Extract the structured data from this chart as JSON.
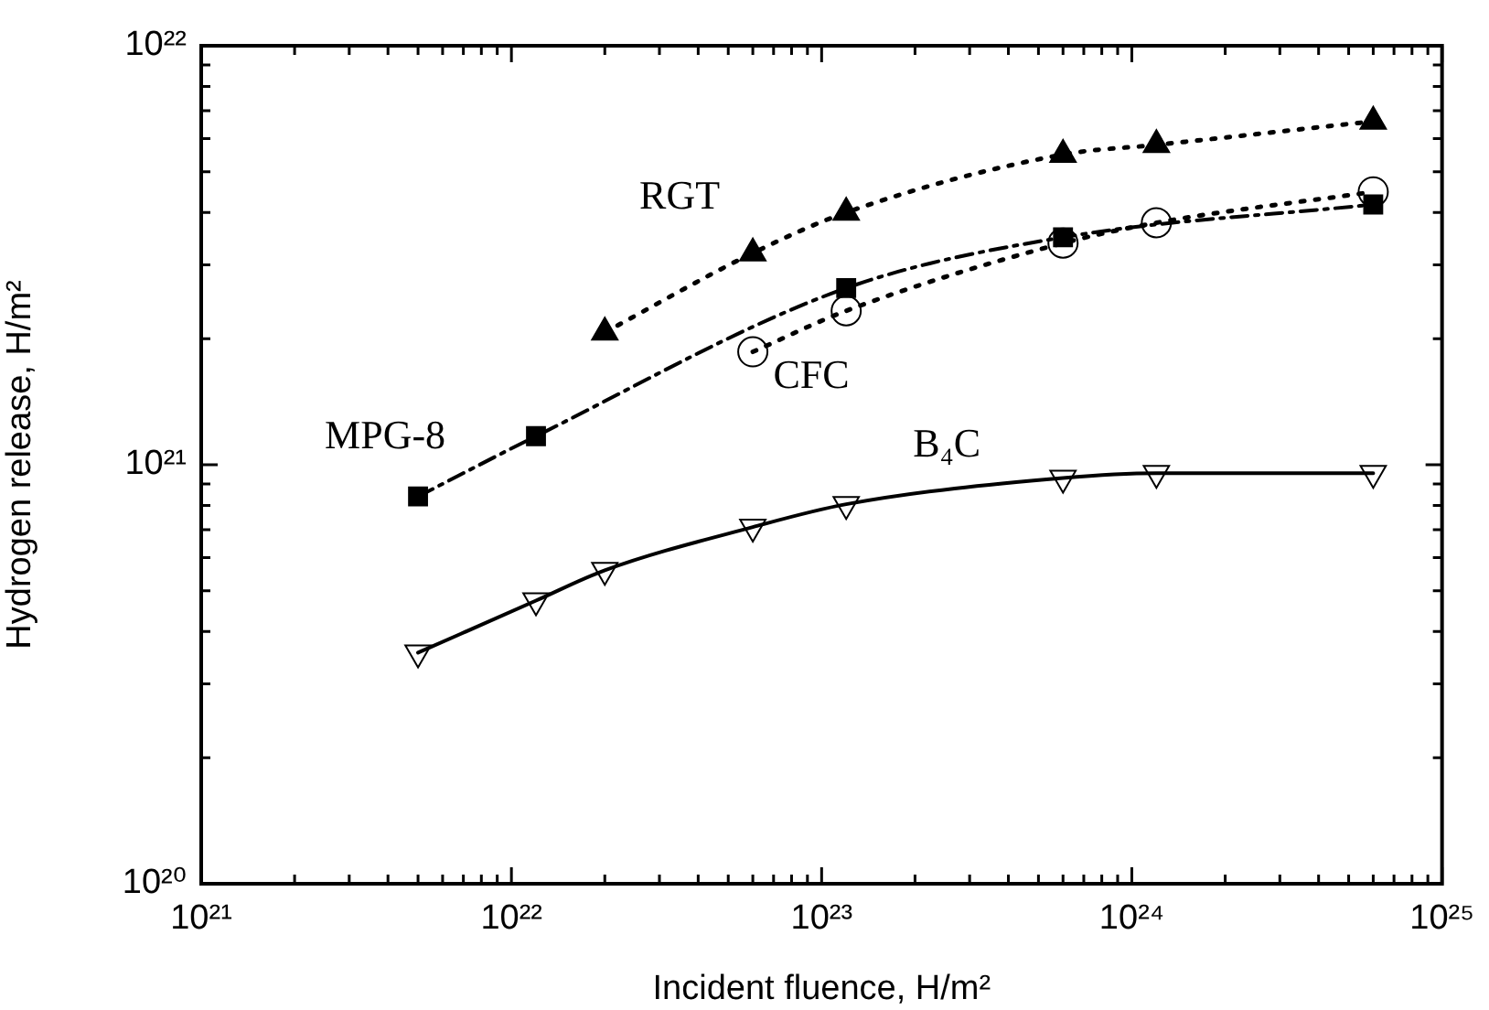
{
  "chart_data": {
    "type": "line",
    "xlabel": "Incident fluence, H/m²",
    "ylabel": "Hydrogen release, H/m²",
    "log": "xy",
    "xlim": [
      1e+21,
      1e+25
    ],
    "ylim": [
      1e+20,
      1e+22
    ],
    "xticks": [
      {
        "value": 1e+21,
        "label": "10²¹"
      },
      {
        "value": 2e+21,
        "label": null
      },
      {
        "value": 3e+21,
        "label": null
      },
      {
        "value": 4e+21,
        "label": null
      },
      {
        "value": 5e+21,
        "label": null
      },
      {
        "value": 6e+21,
        "label": null
      },
      {
        "value": 7e+21,
        "label": null
      },
      {
        "value": 8e+21,
        "label": null
      },
      {
        "value": 9e+21,
        "label": null
      },
      {
        "value": 1e+22,
        "label": "10²²"
      },
      {
        "value": 2e+22,
        "label": null
      },
      {
        "value": 3e+22,
        "label": null
      },
      {
        "value": 4e+22,
        "label": null
      },
      {
        "value": 5e+22,
        "label": null
      },
      {
        "value": 6e+22,
        "label": null
      },
      {
        "value": 7e+22,
        "label": null
      },
      {
        "value": 8e+22,
        "label": null
      },
      {
        "value": 9e+22,
        "label": null
      },
      {
        "value": 1e+23,
        "label": "10²³"
      },
      {
        "value": 2e+23,
        "label": null
      },
      {
        "value": 3e+23,
        "label": null
      },
      {
        "value": 4e+23,
        "label": null
      },
      {
        "value": 5e+23,
        "label": null
      },
      {
        "value": 6e+23,
        "label": null
      },
      {
        "value": 7e+23,
        "label": null
      },
      {
        "value": 8e+23,
        "label": null
      },
      {
        "value": 9e+23,
        "label": null
      },
      {
        "value": 1e+24,
        "label": "10²⁴"
      },
      {
        "value": 2e+24,
        "label": null
      },
      {
        "value": 3e+24,
        "label": null
      },
      {
        "value": 4e+24,
        "label": null
      },
      {
        "value": 5e+24,
        "label": null
      },
      {
        "value": 6e+24,
        "label": null
      },
      {
        "value": 7e+24,
        "label": null
      },
      {
        "value": 8e+24,
        "label": null
      },
      {
        "value": 9e+24,
        "label": null
      },
      {
        "value": 1e+25,
        "label": "10²⁵"
      }
    ],
    "yticks": [
      {
        "value": 1e+20,
        "label": "10²⁰"
      },
      {
        "value": 2e+20,
        "label": null
      },
      {
        "value": 3e+20,
        "label": null
      },
      {
        "value": 4e+20,
        "label": null
      },
      {
        "value": 5e+20,
        "label": null
      },
      {
        "value": 6e+20,
        "label": null
      },
      {
        "value": 7e+20,
        "label": null
      },
      {
        "value": 8e+20,
        "label": null
      },
      {
        "value": 9e+20,
        "label": null
      },
      {
        "value": 1e+21,
        "label": "10²¹"
      },
      {
        "value": 2e+21,
        "label": null
      },
      {
        "value": 3e+21,
        "label": null
      },
      {
        "value": 4e+21,
        "label": null
      },
      {
        "value": 5e+21,
        "label": null
      },
      {
        "value": 6e+21,
        "label": null
      },
      {
        "value": 7e+21,
        "label": null
      },
      {
        "value": 8e+21,
        "label": null
      },
      {
        "value": 9e+21,
        "label": null
      },
      {
        "value": 1e+22,
        "label": "10²²"
      }
    ],
    "grid": false,
    "legend": false,
    "series": [
      {
        "name": "RGT",
        "color": "#000000",
        "marker": "triangle",
        "line_style": "dotted",
        "x": [
          2e+22,
          6e+22,
          1.2e+23,
          6e+23,
          1.2e+24,
          6e+24
        ],
        "values": [
          2.07e+21,
          3.2e+21,
          4e+21,
          5.5e+21,
          5.8e+21,
          6.6e+21
        ]
      },
      {
        "name": "MPG-8",
        "color": "#000000",
        "marker": "square",
        "line_style": "dashed",
        "x": [
          5e+21,
          1.2e+22,
          1.2e+23,
          6e+23,
          6e+24
        ],
        "values": [
          8.4e+20,
          1.17e+21,
          2.64e+21,
          3.49e+21,
          4.18e+21
        ]
      },
      {
        "name": "CFC",
        "color": "#000000",
        "marker": "circle-open",
        "line_style": "dotted",
        "x": [
          6e+22,
          1.2e+23,
          6e+23,
          1.2e+24,
          6e+24
        ],
        "values": [
          1.86e+21,
          2.33e+21,
          3.38e+21,
          3.78e+21,
          4.48e+21
        ]
      },
      {
        "name": "B₄C",
        "color": "#000000",
        "marker": "triangle-down-open",
        "line_style": "solid",
        "x": [
          5e+21,
          1.2e+22,
          2e+22,
          6e+22,
          1.2e+23,
          6e+23,
          1.2e+24,
          6e+24
        ],
        "values": [
          3.56e+20,
          4.74e+20,
          5.6e+20,
          7.1e+20,
          8.05e+20,
          9.3e+20,
          9.55e+20,
          9.55e+20
        ]
      }
    ]
  }
}
